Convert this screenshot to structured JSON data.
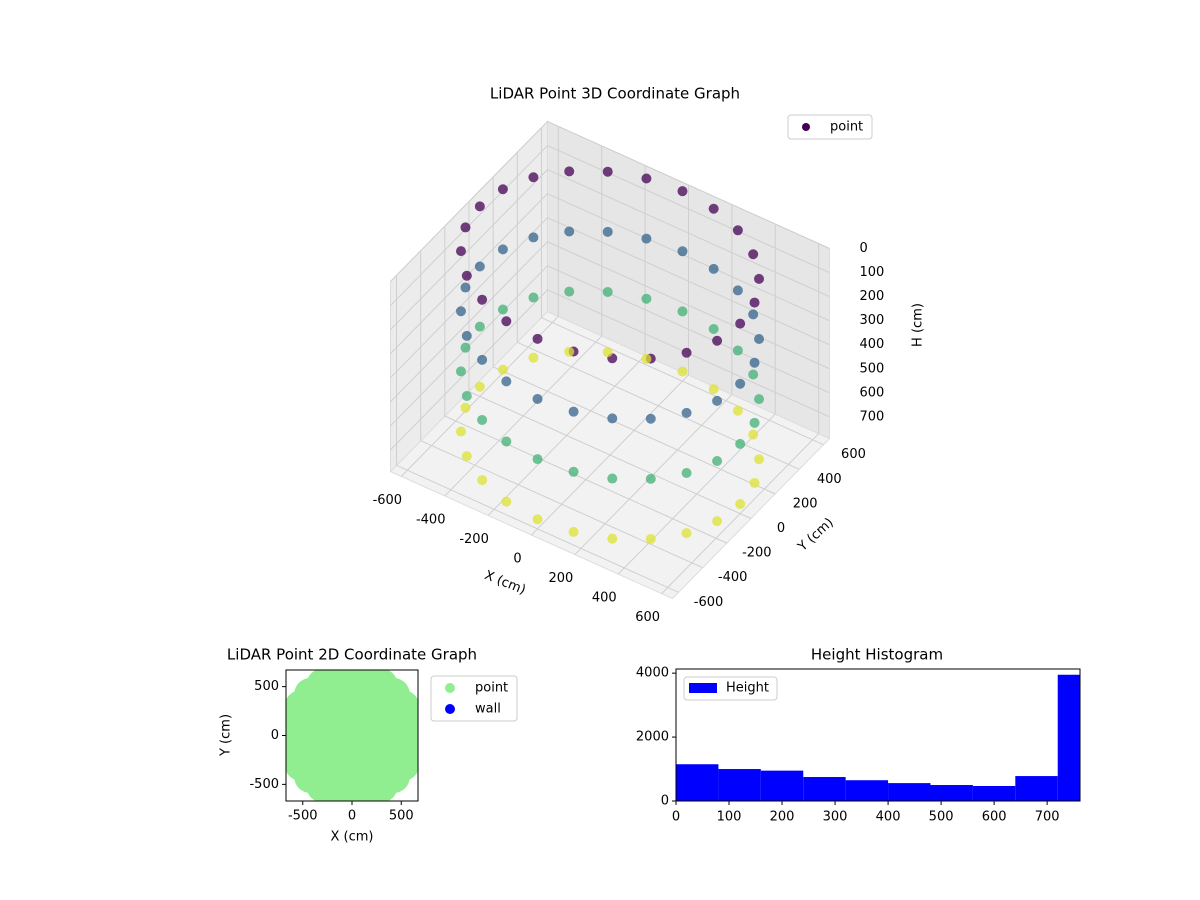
{
  "chart_data": [
    {
      "type": "scatter3d",
      "title": "LiDAR Point 3D Coordinate Graph",
      "xlabel": "X (cm)",
      "ylabel": "Y (cm)",
      "zlabel": "H (cm)",
      "xlim": [
        -650,
        650
      ],
      "ylim": [
        -650,
        650
      ],
      "zlim": [
        0,
        790
      ],
      "z_inverted": true,
      "xticks": [
        -600,
        -400,
        -200,
        0,
        200,
        400,
        600
      ],
      "yticks": [
        -600,
        -400,
        -200,
        0,
        200,
        400,
        600
      ],
      "zticks": [
        0,
        100,
        200,
        300,
        400,
        500,
        600,
        700
      ],
      "colormap": "viridis",
      "legend": "upper right",
      "series": [
        {
          "name": "point",
          "color": "#440154",
          "x": [
            600,
            580,
            520,
            424,
            300,
            155,
            0,
            -155,
            -300,
            -424,
            -520,
            -580,
            -600,
            -580,
            -520,
            -424,
            -300,
            -155,
            0,
            155,
            300,
            424,
            520,
            580,
            600,
            580,
            520,
            424,
            300,
            155,
            0,
            -155,
            -300,
            -424,
            -520,
            -580,
            -600,
            -580,
            -520,
            -424,
            -300,
            -155,
            0,
            155,
            300,
            424,
            520,
            580,
            600,
            580,
            520,
            424,
            300,
            155,
            0,
            -155,
            -300,
            -424,
            -520,
            -580,
            -600,
            -580,
            -520,
            -424,
            -300,
            -155,
            0,
            155,
            300,
            424,
            520,
            580,
            600,
            580,
            520,
            424,
            300,
            155,
            0,
            -155,
            -300,
            -424,
            -520,
            -580,
            -600,
            -580,
            -520,
            -424,
            -300,
            -155,
            0,
            155,
            300,
            424,
            520,
            580
          ],
          "y": [
            0,
            155,
            300,
            424,
            520,
            580,
            600,
            580,
            520,
            424,
            300,
            155,
            0,
            -155,
            -300,
            -424,
            -520,
            -580,
            -600,
            -580,
            -520,
            -424,
            -300,
            -155,
            0,
            155,
            300,
            424,
            520,
            580,
            600,
            580,
            520,
            424,
            300,
            155,
            0,
            -155,
            -300,
            -424,
            -520,
            -580,
            -600,
            -580,
            -520,
            -424,
            -300,
            -155,
            0,
            155,
            300,
            424,
            520,
            580,
            600,
            580,
            520,
            424,
            300,
            155,
            0,
            -155,
            -300,
            -424,
            -520,
            -580,
            -600,
            -580,
            -520,
            -424,
            -300,
            -155,
            0,
            155,
            300,
            424,
            520,
            580,
            600,
            580,
            520,
            424,
            300,
            155,
            0,
            -155,
            -300,
            -424,
            -520,
            -580,
            -600,
            -580,
            -520,
            -424,
            -300,
            -155
          ],
          "z": [
            0,
            0,
            0,
            0,
            0,
            0,
            0,
            0,
            0,
            0,
            0,
            0,
            0,
            0,
            0,
            0,
            0,
            0,
            0,
            0,
            0,
            0,
            0,
            0,
            250,
            250,
            250,
            250,
            250,
            250,
            250,
            250,
            250,
            250,
            250,
            250,
            250,
            250,
            250,
            250,
            250,
            250,
            250,
            250,
            250,
            250,
            250,
            250,
            500,
            500,
            500,
            500,
            500,
            500,
            500,
            500,
            500,
            500,
            500,
            500,
            500,
            500,
            500,
            500,
            500,
            500,
            500,
            500,
            500,
            500,
            500,
            500,
            750,
            750,
            750,
            750,
            750,
            750,
            750,
            750,
            750,
            750,
            750,
            750,
            750,
            750,
            750,
            750,
            750,
            750,
            750,
            750,
            750,
            750,
            750,
            750
          ]
        }
      ]
    },
    {
      "type": "scatter",
      "title": "LiDAR Point 2D Coordinate Graph",
      "xlabel": "X (cm)",
      "ylabel": "Y (cm)",
      "xlim": [
        -670,
        670
      ],
      "ylim": [
        -670,
        670
      ],
      "xticks": [
        -500,
        0,
        500
      ],
      "yticks": [
        -500,
        0,
        500
      ],
      "legend": "outside right",
      "series": [
        {
          "name": "point",
          "color": "#90ee90",
          "x": [
            600,
            580,
            520,
            424,
            300,
            155,
            0,
            -155,
            -300,
            -424,
            -520,
            -580,
            -600,
            -580,
            -520,
            -424,
            -300,
            -155,
            0,
            155,
            300,
            424,
            520,
            580,
            -400,
            -200,
            0,
            200,
            400,
            -400,
            -200,
            0,
            200,
            400,
            -400,
            -200,
            0,
            200,
            400,
            -400,
            -200,
            0,
            200,
            400,
            -400,
            -200,
            0,
            200,
            400
          ],
          "y": [
            0,
            155,
            300,
            424,
            520,
            580,
            600,
            580,
            520,
            424,
            300,
            155,
            0,
            -155,
            -300,
            -424,
            -520,
            -580,
            -600,
            -580,
            -520,
            -424,
            -300,
            -155,
            -400,
            -400,
            -400,
            -400,
            -400,
            -200,
            -200,
            -200,
            -200,
            -200,
            0,
            0,
            0,
            0,
            0,
            200,
            200,
            200,
            200,
            200,
            400,
            400,
            400,
            400,
            400
          ]
        },
        {
          "name": "wall",
          "color": "#0000ff",
          "x": [],
          "y": []
        }
      ]
    },
    {
      "type": "histogram",
      "title": "Height Histogram",
      "xlim": [
        0,
        762
      ],
      "ylim": [
        0,
        4130
      ],
      "xticks": [
        0,
        100,
        200,
        300,
        400,
        500,
        600,
        700
      ],
      "yticks": [
        0,
        2000,
        4000
      ],
      "legend": "upper left",
      "bins": [
        0,
        80,
        160,
        240,
        320,
        400,
        480,
        560,
        640,
        720,
        800
      ],
      "series": [
        {
          "name": "Height",
          "color": "#0000ff",
          "values": [
            1150,
            1000,
            950,
            750,
            650,
            560,
            500,
            470,
            780,
            3950
          ]
        }
      ]
    }
  ]
}
